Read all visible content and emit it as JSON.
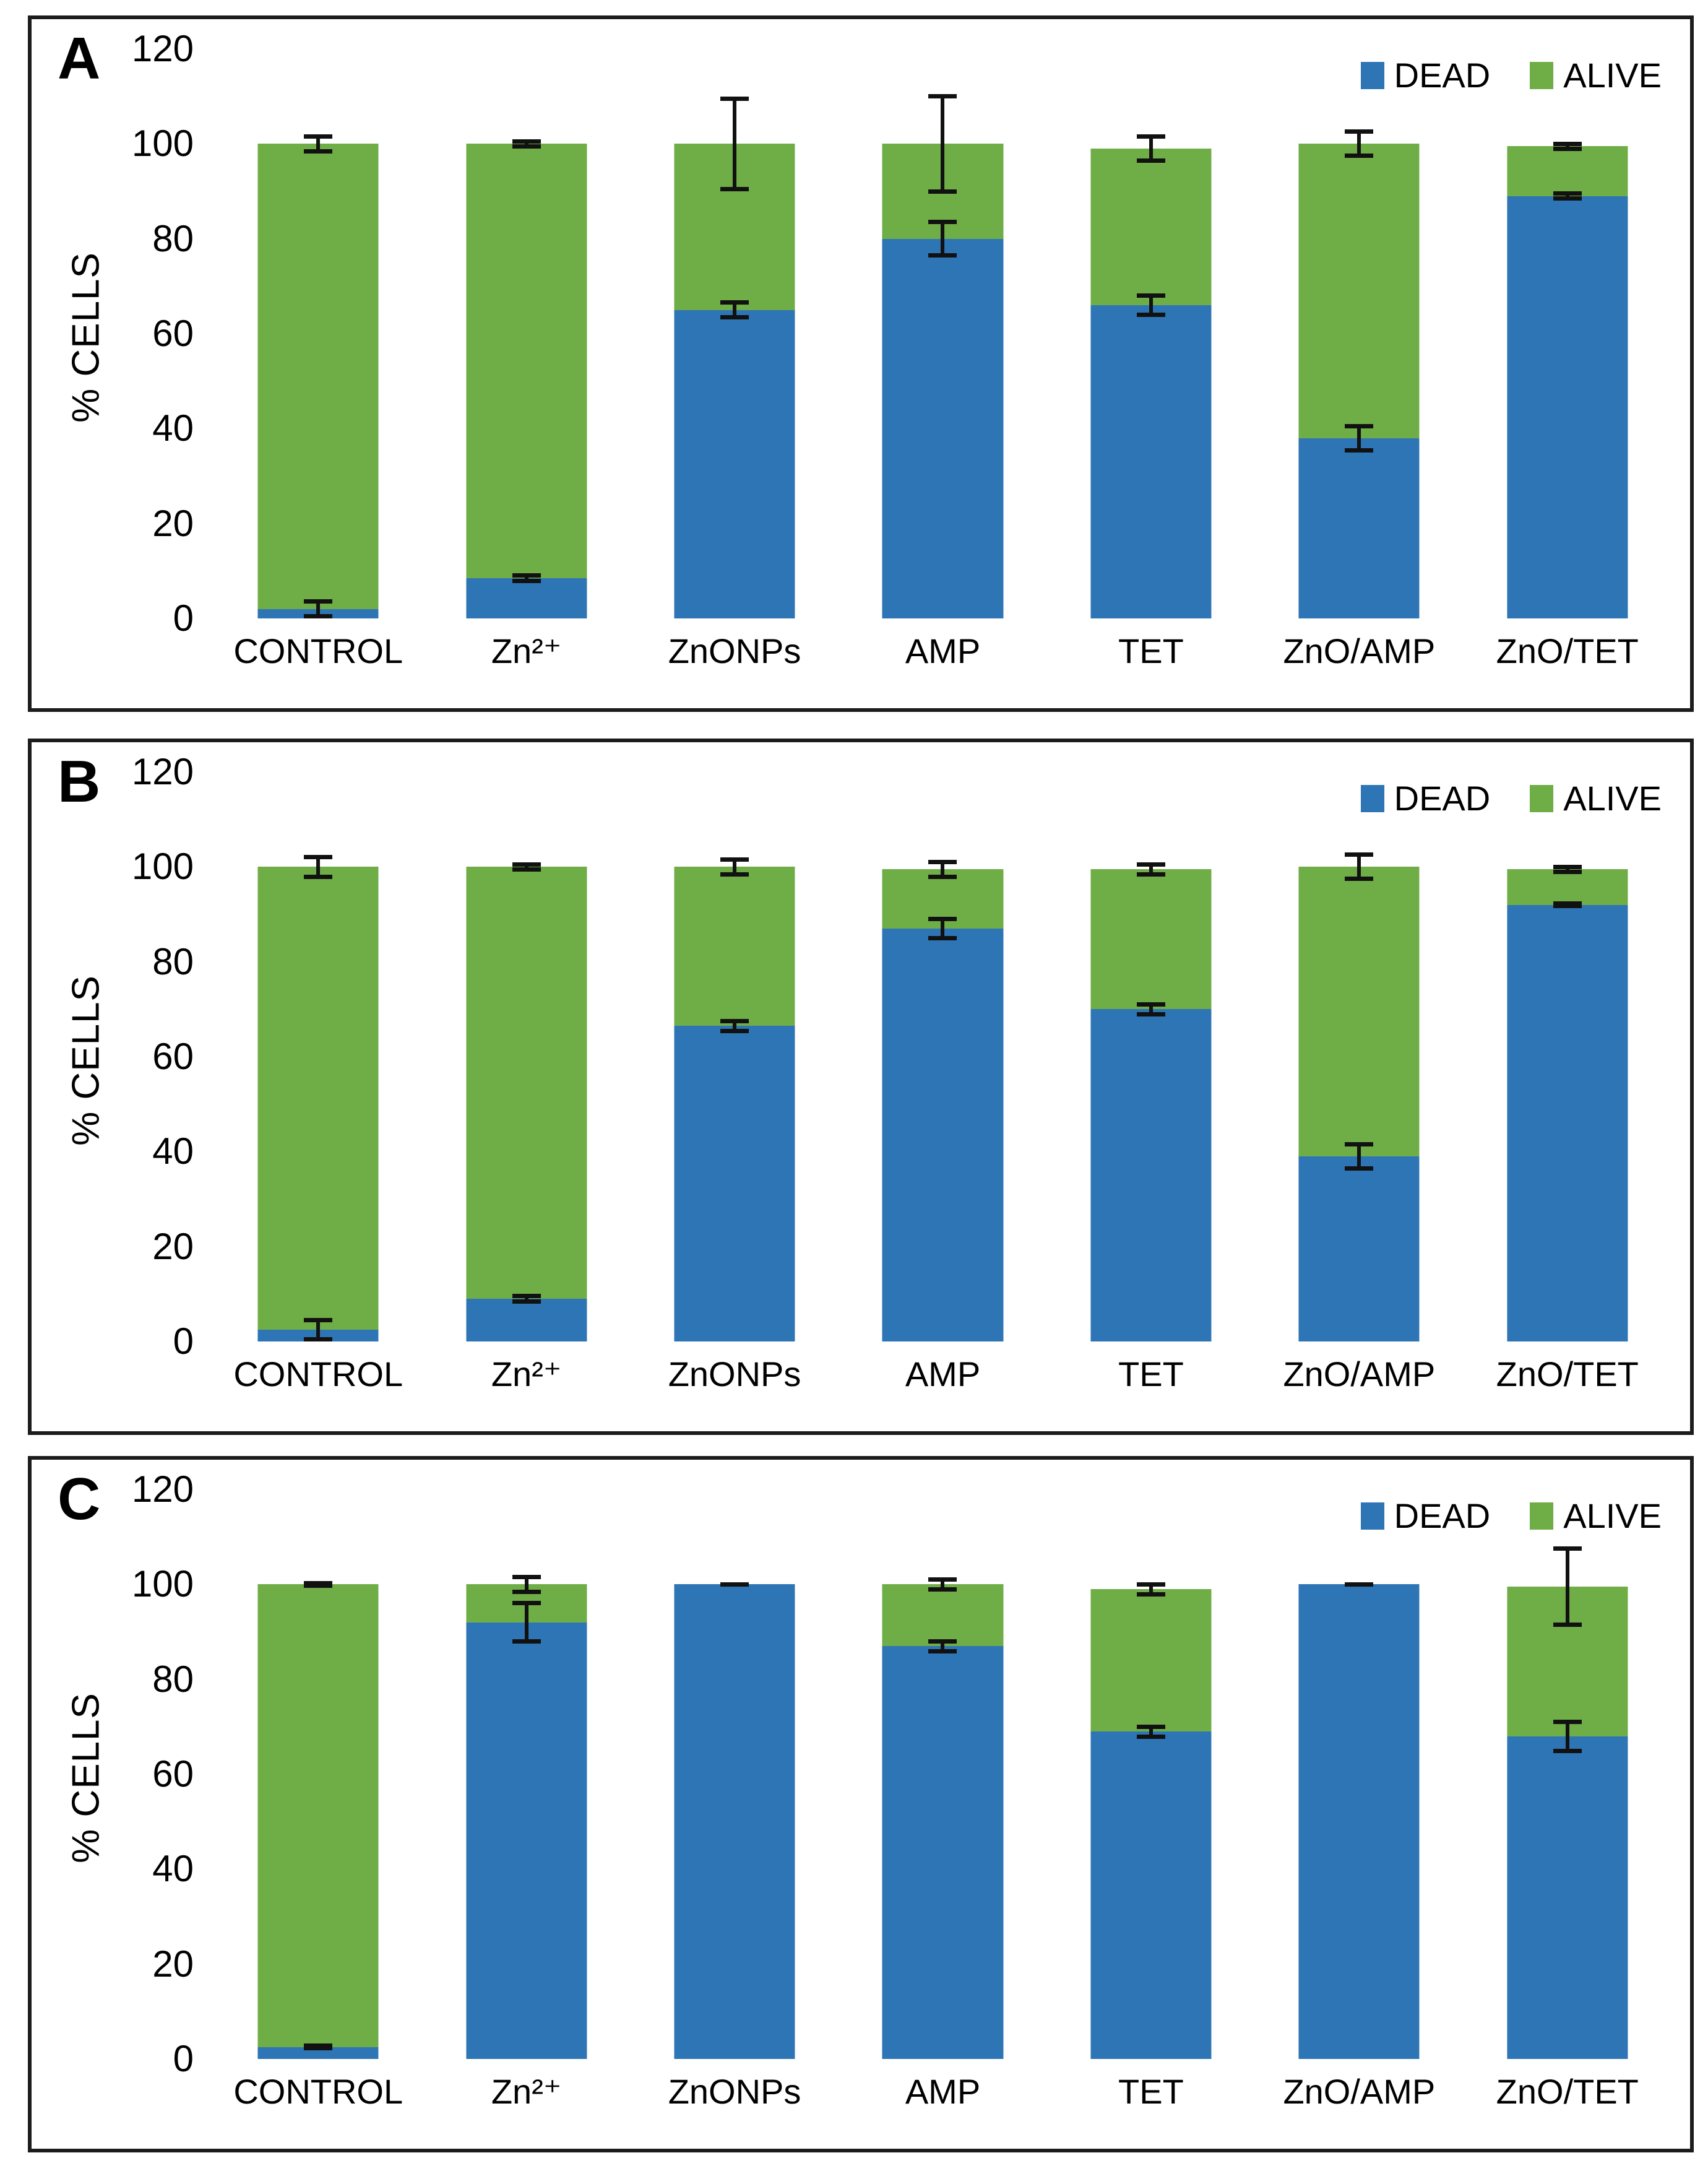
{
  "colors": {
    "dead": "#2e75b6",
    "alive": "#6fad47",
    "error_bar": "#111111",
    "panel_border": "#1c1c1c"
  },
  "legend": {
    "items": [
      {
        "label": "DEAD",
        "color_key": "dead"
      },
      {
        "label": "ALIVE",
        "color_key": "alive"
      }
    ]
  },
  "y_axis": {
    "title": "% CELLS",
    "max": 120,
    "ticks": [
      120,
      100,
      80,
      60,
      40,
      20,
      0
    ]
  },
  "chart_data": [
    {
      "type": "bar",
      "panel_label": "A",
      "stacked": true,
      "errors_drawn_at": "cumulative_segment_top",
      "ylim": [
        0,
        120
      ],
      "categories": [
        "CONTROL",
        "Zn²⁺",
        "ZnONPs",
        "AMP",
        "TET",
        "ZnO/AMP",
        "ZnO/TET"
      ],
      "series": [
        {
          "name": "DEAD",
          "values": [
            2,
            8.5,
            65,
            80,
            66,
            38,
            89
          ],
          "errors": [
            2,
            1,
            2,
            4,
            2.5,
            3,
            1
          ]
        },
        {
          "name": "ALIVE",
          "values": [
            98,
            91.5,
            35,
            20,
            33,
            62,
            10.5
          ],
          "errors": [
            2,
            1,
            10,
            10.5,
            3,
            3,
            1
          ]
        }
      ]
    },
    {
      "type": "bar",
      "panel_label": "B",
      "stacked": true,
      "errors_drawn_at": "cumulative_segment_top",
      "ylim": [
        0,
        120
      ],
      "categories": [
        "CONTROL",
        "Zn²⁺",
        "ZnONPs",
        "AMP",
        "TET",
        "ZnO/AMP",
        "ZnO/TET"
      ],
      "series": [
        {
          "name": "DEAD",
          "values": [
            2.5,
            9,
            66.5,
            87,
            70,
            39,
            92
          ],
          "errors": [
            2.5,
            1,
            1.5,
            2.5,
            1.5,
            3,
            0.7
          ]
        },
        {
          "name": "ALIVE",
          "values": [
            97.5,
            91,
            33.5,
            12.5,
            29.5,
            61,
            7.5
          ],
          "errors": [
            2.5,
            1,
            2,
            2,
            1.5,
            3,
            1
          ]
        }
      ]
    },
    {
      "type": "bar",
      "panel_label": "C",
      "stacked": true,
      "errors_drawn_at": "cumulative_segment_top",
      "ylim": [
        0,
        120
      ],
      "categories": [
        "CONTROL",
        "Zn²⁺",
        "ZnONPs",
        "AMP",
        "TET",
        "ZnO/AMP",
        "ZnO/TET"
      ],
      "series": [
        {
          "name": "DEAD",
          "values": [
            2.5,
            92,
            100,
            87,
            69,
            100,
            68
          ],
          "errors": [
            0.7,
            4.5,
            null,
            1.5,
            1.5,
            null,
            3.5
          ]
        },
        {
          "name": "ALIVE",
          "values": [
            97.5,
            8,
            0,
            13,
            30,
            0,
            31.5
          ],
          "errors": [
            0.7,
            2,
            0.5,
            1.5,
            1.5,
            0.5,
            8.5
          ]
        }
      ]
    }
  ]
}
